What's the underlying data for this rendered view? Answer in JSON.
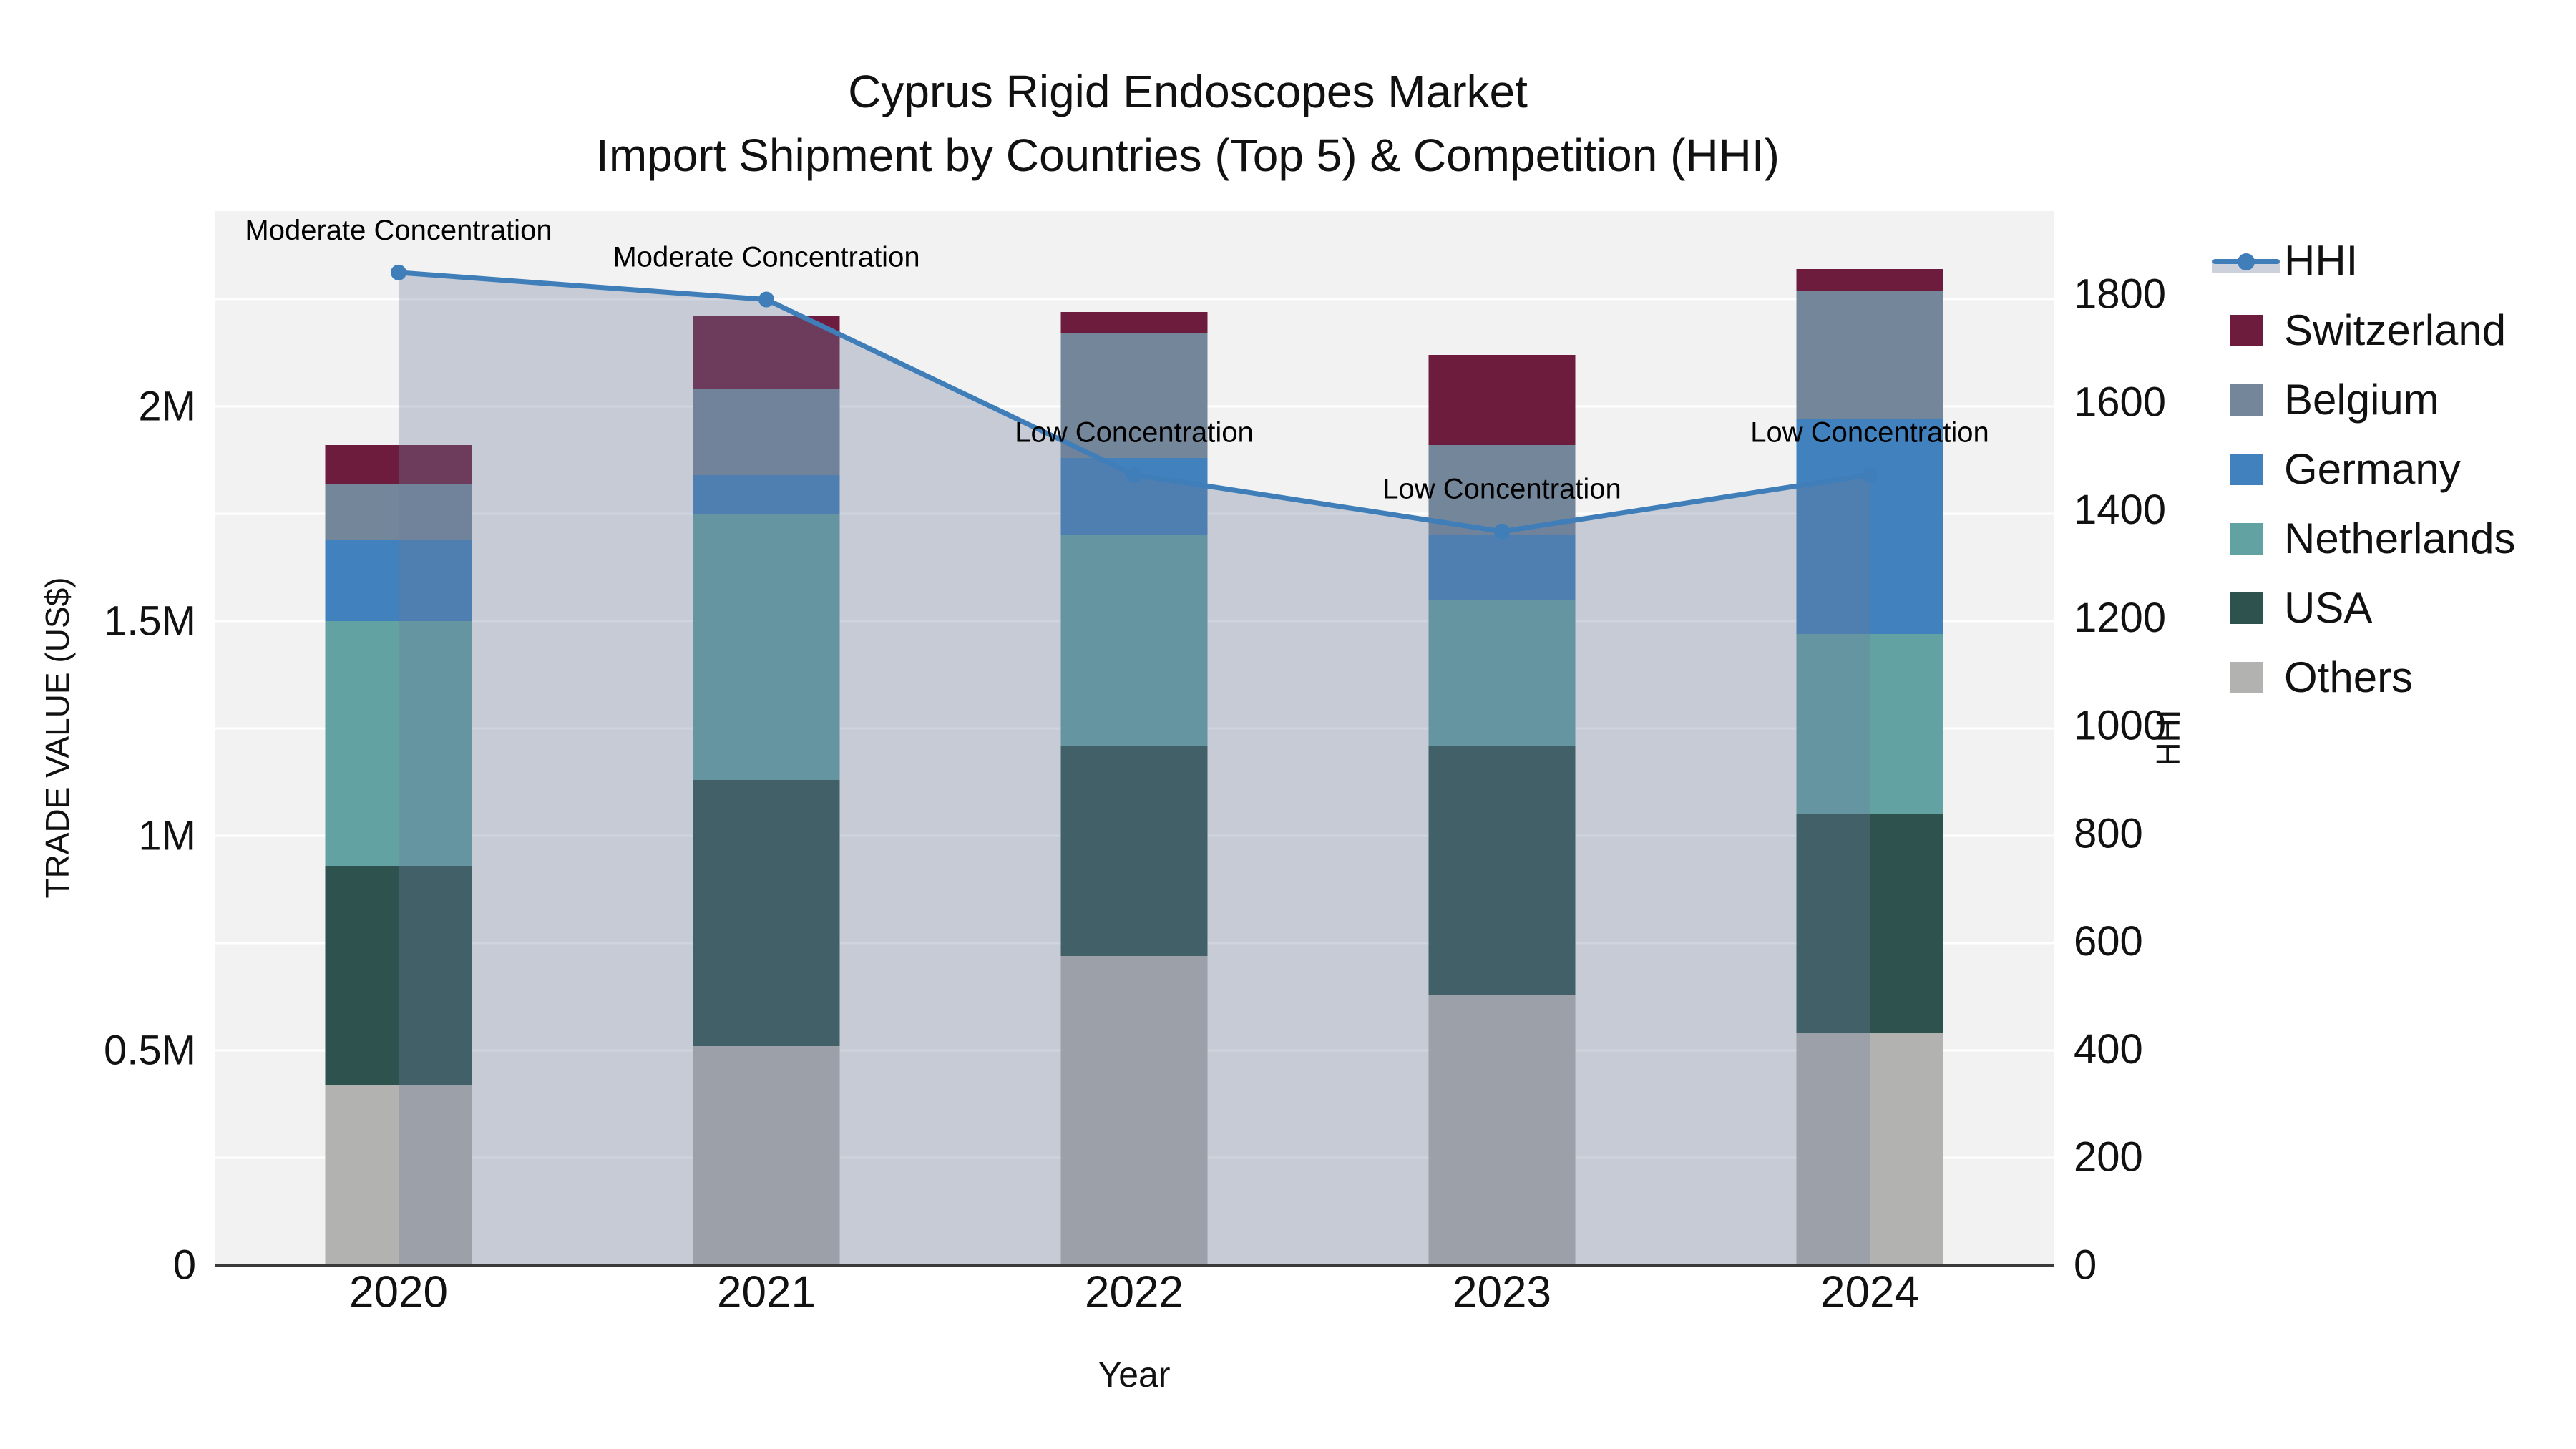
{
  "title": {
    "line1": "Cyprus Rigid Endoscopes Market",
    "line2": "Import Shipment by Countries (Top 5) & Competition (HHI)"
  },
  "axes": {
    "y_left": {
      "title": "TRADE VALUE (US$)",
      "tick_labels": [
        "0",
        "0.5M",
        "1M",
        "1.5M",
        "2M"
      ],
      "tick_values_musd": [
        0,
        0.5,
        1,
        1.5,
        2
      ]
    },
    "y_right": {
      "title": "HHI",
      "tick_labels": [
        "0",
        "200",
        "400",
        "600",
        "800",
        "1000",
        "1200",
        "1400",
        "1600",
        "1800"
      ],
      "tick_values": [
        0,
        200,
        400,
        600,
        800,
        1000,
        1200,
        1400,
        1600,
        1800
      ]
    },
    "x": {
      "title": "Year",
      "categories": [
        "2020",
        "2021",
        "2022",
        "2023",
        "2024"
      ]
    }
  },
  "legend": [
    {
      "label": "HHI",
      "type": "line",
      "color": "#3f7eb8"
    },
    {
      "label": "Switzerland",
      "type": "chip",
      "color": "#6e1c3d"
    },
    {
      "label": "Belgium",
      "type": "chip",
      "color": "#74869a"
    },
    {
      "label": "Germany",
      "type": "chip",
      "color": "#4181bd"
    },
    {
      "label": "Netherlands",
      "type": "chip",
      "color": "#62a2a3"
    },
    {
      "label": "USA",
      "type": "chip",
      "color": "#2e524e"
    },
    {
      "label": "Others",
      "type": "chip",
      "color": "#b2b2b0"
    }
  ],
  "chart_data": {
    "type": "bar+line",
    "title": "Cyprus Rigid Endoscopes Market — Import Shipment by Countries (Top 5) & Competition (HHI)",
    "categories": [
      "2020",
      "2021",
      "2022",
      "2023",
      "2024"
    ],
    "bar_value_units": "millions USD",
    "bar_stack_order_bottom_to_top": [
      "Others",
      "USA",
      "Netherlands",
      "Germany",
      "Belgium",
      "Switzerland"
    ],
    "bar_series": [
      {
        "name": "Others",
        "color": "#b2b2b0",
        "values": [
          0.42,
          0.51,
          0.72,
          0.63,
          0.54
        ]
      },
      {
        "name": "USA",
        "color": "#2e524e",
        "values": [
          0.51,
          0.62,
          0.49,
          0.58,
          0.51
        ]
      },
      {
        "name": "Netherlands",
        "color": "#62a2a3",
        "values": [
          0.57,
          0.62,
          0.49,
          0.34,
          0.42
        ]
      },
      {
        "name": "Germany",
        "color": "#4181bd",
        "values": [
          0.19,
          0.09,
          0.18,
          0.15,
          0.5
        ]
      },
      {
        "name": "Belgium",
        "color": "#74869a",
        "values": [
          0.13,
          0.2,
          0.29,
          0.21,
          0.3
        ]
      },
      {
        "name": "Switzerland",
        "color": "#6e1c3d",
        "values": [
          0.09,
          0.17,
          0.05,
          0.21,
          0.05
        ]
      }
    ],
    "line_series": {
      "name": "HHI",
      "axis": "right",
      "color": "#3f7eb8",
      "fill": "tozero",
      "fill_color": "rgba(108,125,155,0.33)",
      "values": [
        1840,
        1790,
        1465,
        1360,
        1465
      ]
    },
    "annotations": [
      {
        "x": "2020",
        "text": "Moderate Concentration"
      },
      {
        "x": "2021",
        "text": "Moderate Concentration"
      },
      {
        "x": "2022",
        "text": "Low Concentration"
      },
      {
        "x": "2023",
        "text": "Low Concentration"
      },
      {
        "x": "2024",
        "text": "Low Concentration"
      }
    ],
    "xlabel": "Year",
    "ylabel_left": "TRADE VALUE (US$)",
    "ylabel_right": "HHI",
    "ylim_left_musd": [
      0,
      2.455
    ],
    "ylim_right": [
      0,
      1955
    ],
    "grid": "horizontal, every 0.25M, white on #f2f2f2 panel",
    "legend_position": "right"
  },
  "colors": {
    "plot_background": "#f2f2f2",
    "page_background": "#ffffff",
    "gridline": "#ffffff",
    "axis_line": "#3a3a3a",
    "text": "#111111",
    "hhi_line": "#3f7eb8",
    "hhi_area_fill": "rgba(108,125,155,0.33)"
  }
}
